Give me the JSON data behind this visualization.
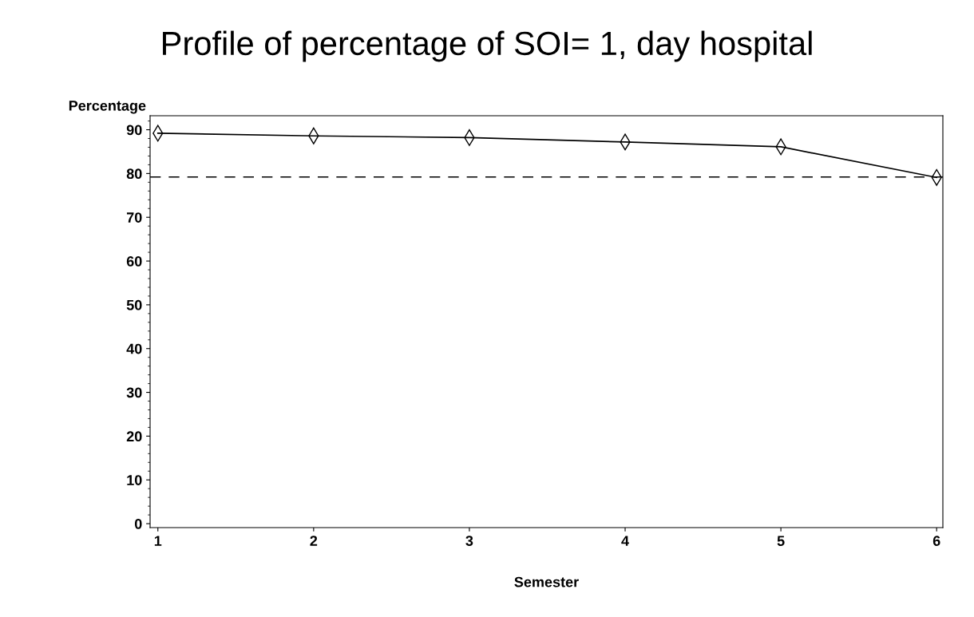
{
  "chart_data": {
    "type": "line",
    "title": "Profile of percentage of SOI= 1, day hospital",
    "xlabel": "Semester",
    "ylabel": "Percentage",
    "x": [
      1,
      2,
      3,
      4,
      5,
      6
    ],
    "series": [
      {
        "color": "#000000",
        "values": [
          89.2,
          88.6,
          88.2,
          87.2,
          86.1,
          79.1
        ]
      }
    ],
    "xlim": [
      0.95,
      6.04
    ],
    "xticks": [
      1,
      2,
      3,
      4,
      5,
      6
    ],
    "ylim": [
      -0.9,
      93.2
    ],
    "yticks": [
      0,
      10,
      20,
      30,
      40,
      50,
      60,
      70,
      80,
      90
    ],
    "ref_lines": [
      {
        "axis": "y",
        "value": 79.2,
        "color": "#000000",
        "line_style": "dashed"
      }
    ],
    "marker": "diamond",
    "line_style": "solid",
    "grid": false
  }
}
